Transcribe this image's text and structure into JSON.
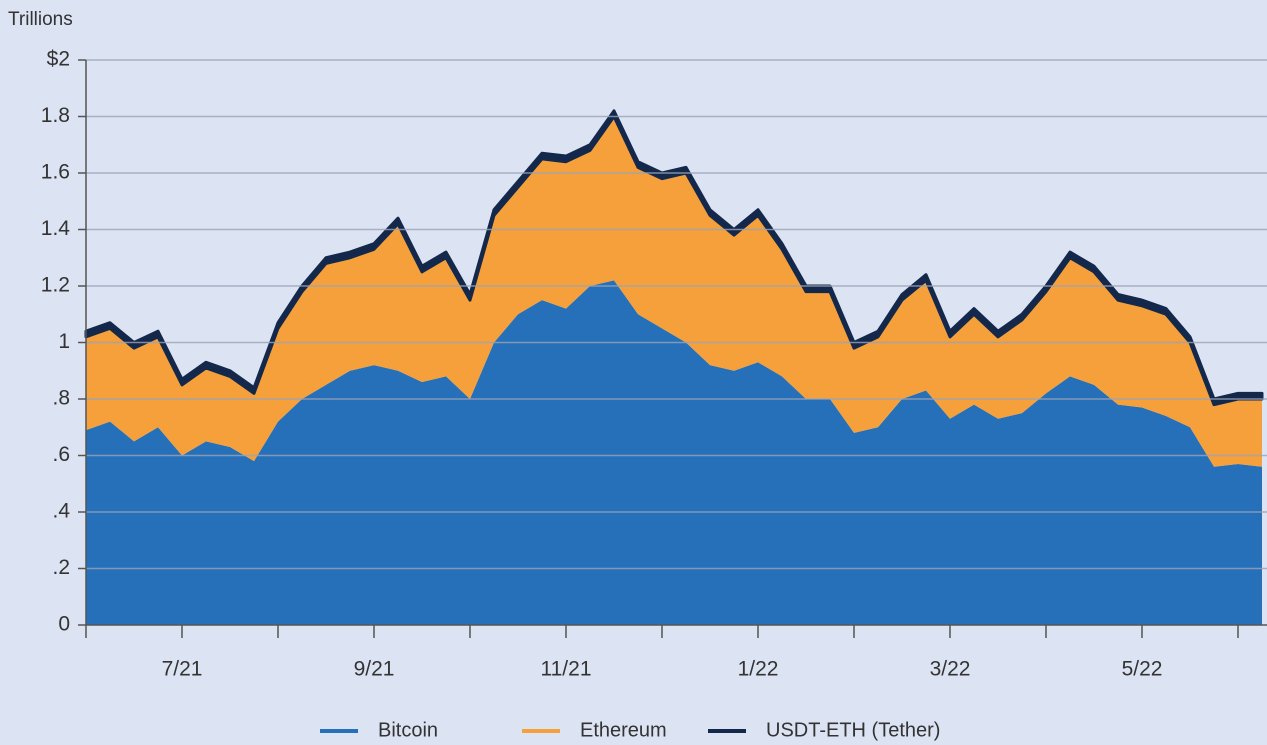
{
  "chart_data": {
    "type": "stacked_area",
    "ylabel": "Trillions",
    "categories": [
      null,
      null,
      null,
      null,
      "7/21",
      null,
      null,
      null,
      null,
      null,
      null,
      null,
      "9/21",
      null,
      null,
      null,
      null,
      null,
      null,
      null,
      "11/21",
      null,
      null,
      null,
      null,
      null,
      null,
      null,
      "1/22",
      null,
      null,
      null,
      null,
      null,
      null,
      null,
      "3/22",
      null,
      null,
      null,
      null,
      null,
      null,
      null,
      "5/22",
      null,
      null,
      null,
      null,
      null
    ],
    "series": [
      {
        "name": "Bitcoin",
        "color": "#2570b8",
        "values": [
          0.69,
          0.72,
          0.65,
          0.7,
          0.6,
          0.65,
          0.63,
          0.58,
          0.72,
          0.8,
          0.85,
          0.9,
          0.92,
          0.9,
          0.86,
          0.88,
          0.8,
          1.0,
          1.1,
          1.15,
          1.12,
          1.2,
          1.22,
          1.1,
          1.05,
          1.0,
          0.92,
          0.9,
          0.93,
          0.88,
          0.8,
          0.8,
          0.68,
          0.7,
          0.8,
          0.83,
          0.73,
          0.78,
          0.73,
          0.75,
          0.82,
          0.88,
          0.85,
          0.78,
          0.77,
          0.74,
          0.7,
          0.56,
          0.57,
          0.56
        ]
      },
      {
        "name": "Ethereum",
        "color": "#f5a03a",
        "values": [
          0.33,
          0.33,
          0.33,
          0.32,
          0.25,
          0.26,
          0.25,
          0.24,
          0.33,
          0.38,
          0.43,
          0.4,
          0.41,
          0.52,
          0.39,
          0.42,
          0.35,
          0.45,
          0.45,
          0.5,
          0.52,
          0.48,
          0.58,
          0.52,
          0.53,
          0.6,
          0.53,
          0.48,
          0.52,
          0.45,
          0.38,
          0.38,
          0.3,
          0.32,
          0.35,
          0.39,
          0.29,
          0.32,
          0.29,
          0.33,
          0.36,
          0.42,
          0.4,
          0.37,
          0.36,
          0.36,
          0.3,
          0.22,
          0.23,
          0.24
        ]
      },
      {
        "name": "USDT-ETH (Tether)",
        "color": "#14284b",
        "values": [
          0.02,
          0.02,
          0.02,
          0.02,
          0.02,
          0.02,
          0.02,
          0.02,
          0.02,
          0.02,
          0.02,
          0.02,
          0.02,
          0.02,
          0.02,
          0.02,
          0.02,
          0.02,
          0.02,
          0.02,
          0.02,
          0.02,
          0.02,
          0.02,
          0.02,
          0.02,
          0.02,
          0.02,
          0.02,
          0.02,
          0.02,
          0.02,
          0.02,
          0.02,
          0.02,
          0.02,
          0.02,
          0.02,
          0.02,
          0.02,
          0.02,
          0.02,
          0.02,
          0.02,
          0.02,
          0.02,
          0.02,
          0.02,
          0.02,
          0.02
        ]
      }
    ],
    "ylim": [
      0,
      2
    ],
    "yticks": [
      0,
      {
        "value": 0.2,
        "label": ".2"
      },
      {
        "value": 0.4,
        "label": ".4"
      },
      {
        "value": 0.6,
        "label": ".6"
      },
      {
        "value": 0.8,
        "label": ".8"
      },
      1,
      1.2,
      1.4,
      1.6,
      1.8,
      {
        "value": 2,
        "label": "$2"
      }
    ],
    "grid": true
  }
}
